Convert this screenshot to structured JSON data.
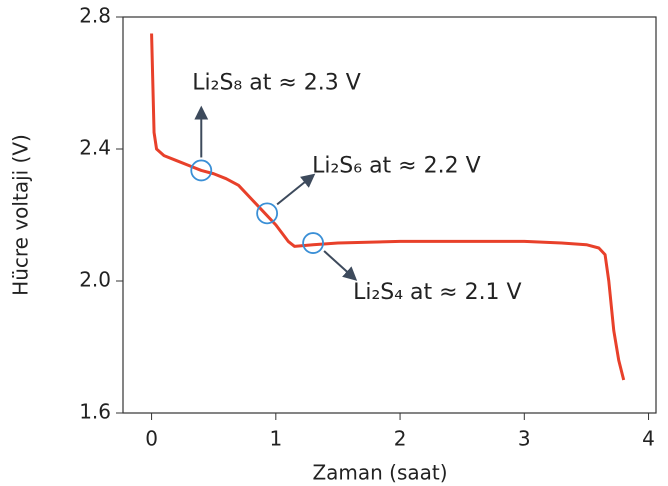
{
  "chart_data": {
    "type": "line",
    "x_label": "Zaman (saat)",
    "y_label": "Hücre voltaji (V)",
    "x": [
      0,
      0.01,
      0.02,
      0.04,
      0.1,
      0.2,
      0.3,
      0.4,
      0.5,
      0.6,
      0.7,
      0.8,
      0.9,
      1.0,
      1.1,
      1.15,
      1.3,
      1.5,
      2.0,
      2.5,
      3.0,
      3.3,
      3.5,
      3.6,
      3.65,
      3.68,
      3.72,
      3.76,
      3.8
    ],
    "series": [
      {
        "color": "#e8402a",
        "values": [
          2.75,
          2.6,
          2.45,
          2.4,
          2.38,
          2.365,
          2.35,
          2.335,
          2.325,
          2.31,
          2.29,
          2.25,
          2.21,
          2.17,
          2.12,
          2.105,
          2.11,
          2.115,
          2.12,
          2.12,
          2.12,
          2.115,
          2.11,
          2.1,
          2.08,
          2.0,
          1.85,
          1.76,
          1.7
        ]
      }
    ],
    "xlim": [
      -0.23,
      4.06
    ],
    "ylim": [
      1.6,
      2.8
    ],
    "xticks": [
      0,
      1,
      2,
      3,
      4
    ],
    "yticks": [
      {
        "value": 1.6,
        "label": "1.6"
      },
      {
        "value": 2.0,
        "label": "2.0"
      },
      {
        "value": 2.4,
        "label": "2.4"
      },
      {
        "value": 2.8,
        "label": "2.8"
      }
    ],
    "marker_color": "#3a8fd6",
    "annotations": [
      {
        "text": "Li₂S₈ at ≈ 2.3 V",
        "x": 0.4,
        "y": 2.335
      },
      {
        "text": "Li₂S₆ at ≈ 2.2 V",
        "x": 0.93,
        "y": 2.205
      },
      {
        "text": "Li₂S₄ at ≈ 2.1 V",
        "x": 1.3,
        "y": 2.115
      }
    ]
  }
}
